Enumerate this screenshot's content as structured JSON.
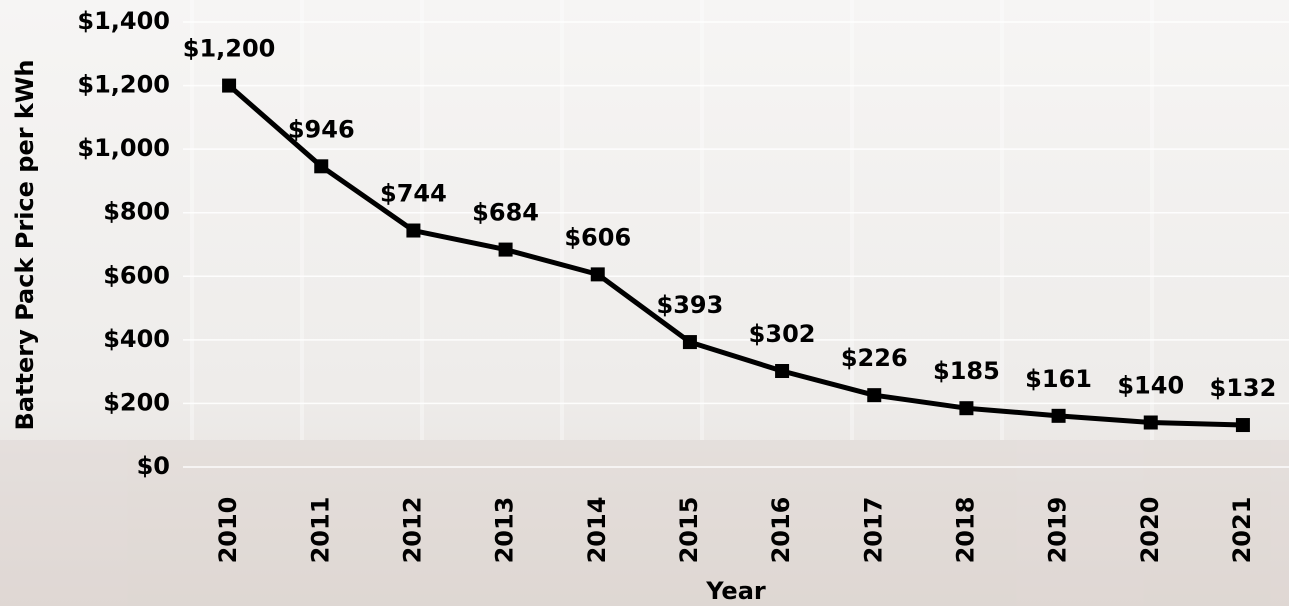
{
  "chart_data": {
    "type": "line",
    "x_label": "Year",
    "y_label": "Battery Pack Price per kWh",
    "categories": [
      "2010",
      "2011",
      "2012",
      "2013",
      "2014",
      "2015",
      "2016",
      "2017",
      "2018",
      "2019",
      "2020",
      "2021"
    ],
    "values": [
      1200,
      946,
      744,
      684,
      606,
      393,
      302,
      226,
      185,
      161,
      140,
      132
    ],
    "value_labels": [
      "$1,200",
      "$946",
      "$744",
      "$684",
      "$606",
      "$393",
      "$302",
      "$226",
      "$185",
      "$161",
      "$140",
      "$132"
    ],
    "color": "#000000",
    "ylim": [
      0,
      1400
    ],
    "yticks": [
      {
        "value": 0,
        "label": "$0"
      },
      {
        "value": 200,
        "label": "$200"
      },
      {
        "value": 400,
        "label": "$400"
      },
      {
        "value": 600,
        "label": "$600"
      },
      {
        "value": 800,
        "label": "$800"
      },
      {
        "value": 1000,
        "label": "$1,000"
      },
      {
        "value": 1200,
        "label": "$1,200"
      },
      {
        "value": 1400,
        "label": "$1,400"
      }
    ],
    "grid": true
  }
}
